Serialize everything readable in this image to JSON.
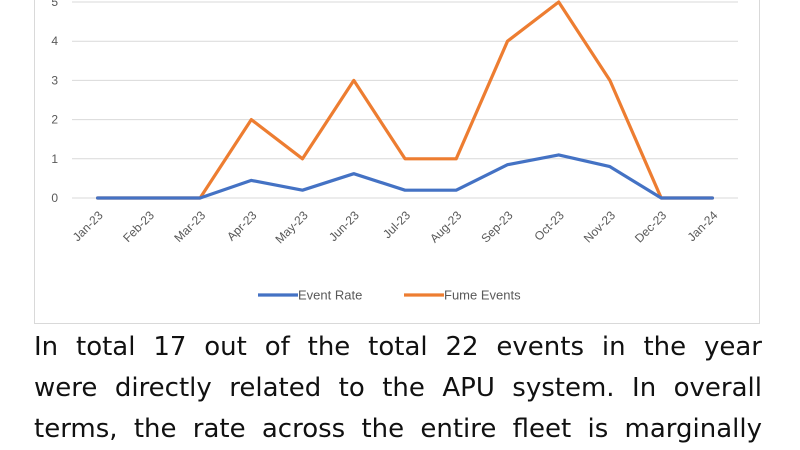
{
  "chart_data": {
    "type": "line",
    "categories": [
      "Jan-23",
      "Feb-23",
      "Mar-23",
      "Apr-23",
      "May-23",
      "Jun-23",
      "Jul-23",
      "Aug-23",
      "Sep-23",
      "Oct-23",
      "Nov-23",
      "Dec-23",
      "Jan-24"
    ],
    "series": [
      {
        "name": "Event Rate",
        "color": "#4472c4",
        "values": [
          0,
          0,
          0,
          0.45,
          0.2,
          0.62,
          0.2,
          0.2,
          0.85,
          1.1,
          0.8,
          0,
          0
        ]
      },
      {
        "name": "Fume Events",
        "color": "#ed7d31",
        "values": [
          0,
          0,
          0,
          2,
          1,
          3,
          1,
          1,
          4,
          5,
          3,
          0,
          0
        ]
      }
    ],
    "yticks": [
      0,
      1,
      2,
      3,
      4,
      5
    ],
    "ylim": [
      0,
      5
    ],
    "grid": true,
    "legend": "bottom"
  },
  "paragraph": {
    "lines": [
      "In total 17 out of the total 22 events in the year",
      "were directly related to the APU system. In overall",
      "terms, the rate across the entire fleet is marginally"
    ]
  }
}
